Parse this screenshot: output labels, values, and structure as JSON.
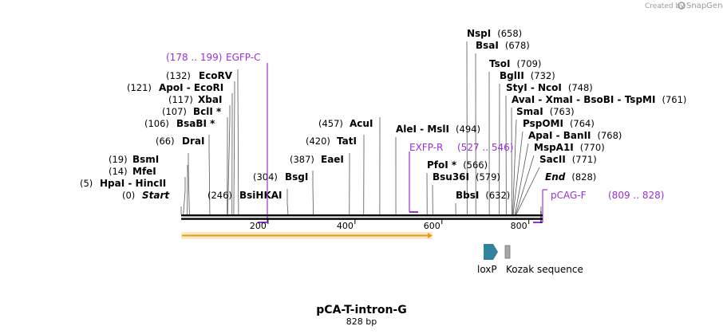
{
  "title": "pCA-T-intron-G",
  "length_label": "828 bp",
  "credit": {
    "prefix": "Created by",
    "brand": "SnapGene"
  },
  "axis": {
    "ticks": [
      200,
      400,
      600,
      800
    ],
    "bp_max": 828
  },
  "sites": [
    {
      "pos": 0,
      "pos_label": "(0)",
      "name": "Start",
      "italic": true
    },
    {
      "pos": 5,
      "pos_label": "(5)",
      "name": "HpaI  - HincII"
    },
    {
      "pos": 14,
      "pos_label": "(14)",
      "name": "MfeI"
    },
    {
      "pos": 19,
      "pos_label": "(19)",
      "name": "BsmI"
    },
    {
      "pos": 66,
      "pos_label": "(66)",
      "name": "DraI"
    },
    {
      "pos": 106,
      "pos_label": "(106)",
      "name": "BsaBI *"
    },
    {
      "pos": 107,
      "pos_label": "(107)",
      "name": "BclI *"
    },
    {
      "pos": 117,
      "pos_label": "(117)",
      "name": "XbaI"
    },
    {
      "pos": 121,
      "pos_label": "(121)",
      "name": "ApoI  - EcoRI"
    },
    {
      "pos": 132,
      "pos_label": "(132)",
      "name": "EcoRV"
    },
    {
      "pos": 246,
      "pos_label": "(246)",
      "name": "BsiHKAI"
    },
    {
      "pos": 304,
      "pos_label": "(304)",
      "name": "BsgI"
    },
    {
      "pos": 387,
      "pos_label": "(387)",
      "name": "EaeI"
    },
    {
      "pos": 420,
      "pos_label": "(420)",
      "name": "TatI"
    },
    {
      "pos": 457,
      "pos_label": "(457)",
      "name": "AcuI"
    },
    {
      "pos": 494,
      "pos_label": "(494)",
      "name": "AleI  - MslI"
    },
    {
      "pos": 566,
      "pos_label": "(566)",
      "name": "PfoI *"
    },
    {
      "pos": 579,
      "pos_label": "(579)",
      "name": "Bsu36I"
    },
    {
      "pos": 632,
      "pos_label": "(632)",
      "name": "BbsI"
    },
    {
      "pos": 658,
      "pos_label": "(658)",
      "name": "NspI"
    },
    {
      "pos": 678,
      "pos_label": "(678)",
      "name": "BsaI"
    },
    {
      "pos": 709,
      "pos_label": "(709)",
      "name": "TsoI"
    },
    {
      "pos": 732,
      "pos_label": "(732)",
      "name": "BglII"
    },
    {
      "pos": 748,
      "pos_label": "(748)",
      "name": "StyI  - NcoI"
    },
    {
      "pos": 761,
      "pos_label": "(761)",
      "name": "AvaI  - XmaI  - BsoBI  - TspMI"
    },
    {
      "pos": 763,
      "pos_label": "(763)",
      "name": "SmaI"
    },
    {
      "pos": 764,
      "pos_label": "(764)",
      "name": "PspOMI"
    },
    {
      "pos": 768,
      "pos_label": "(768)",
      "name": "ApaI  - BanII"
    },
    {
      "pos": 770,
      "pos_label": "(770)",
      "name": "MspA1I"
    },
    {
      "pos": 771,
      "pos_label": "(771)",
      "name": "SacII"
    },
    {
      "pos": 828,
      "pos_label": "(828)",
      "name": "End",
      "italic": true
    }
  ],
  "primers": [
    {
      "name": "EGFP-C",
      "range_label": "(178 .. 199)",
      "start": 178,
      "end": 199
    },
    {
      "name": "EXFP-R",
      "range_label": "(527 .. 546)",
      "start": 527,
      "end": 546
    },
    {
      "name": "pCAG-F",
      "range_label": "(809 .. 828)",
      "start": 809,
      "end": 828
    }
  ],
  "features": [
    {
      "name": "loxP",
      "type": "protein_bind",
      "color": "#31849b"
    },
    {
      "name": "Kozak sequence",
      "type": "regulatory",
      "color": "#a6a6a6"
    }
  ],
  "orf": {
    "start": 0,
    "end": 580,
    "color": "#f5b041"
  },
  "colors": {
    "primer": "#9b30d9",
    "backbone": "#000000",
    "site_line": "#555555"
  }
}
